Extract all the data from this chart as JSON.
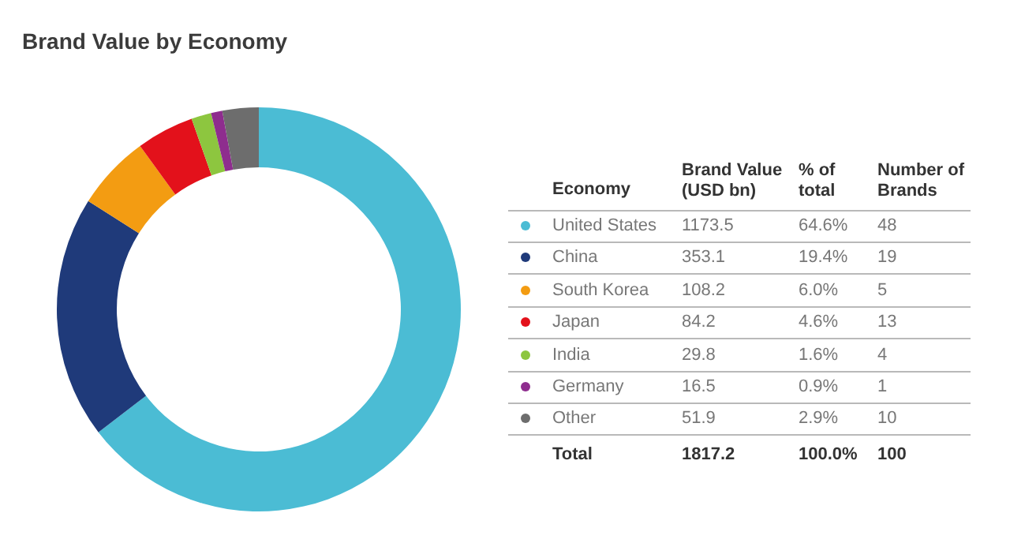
{
  "chart_data": [
    {
      "type": "donut",
      "title": "Brand Value by Economy",
      "categories": [
        null,
        null,
        null,
        null,
        null,
        null,
        null
      ],
      "values": [
        64.6,
        19.4,
        6.0,
        4.6,
        1.6,
        0.9,
        2.9
      ],
      "colors": [
        "#4bbcd4",
        "#1f3a7a",
        "#f39c12",
        "#e3111b",
        "#8dc63f",
        "#8e2d8e",
        "#6d6d6d"
      ]
    },
    {
      "type": "other",
      "xlabel": "Economy",
      "categories": [
        "United States",
        "China",
        "South Korea",
        "Japan",
        "India",
        "Germany",
        "Other"
      ],
      "colors": [
        "#4bbcd4",
        "#1f3a7a",
        "#f39c12",
        "#e3111b",
        "#8dc63f",
        "#8e2d8e",
        "#6d6d6d"
      ],
      "data_labels": true,
      "series": [
        {
          "name": "Brand Value (USD bn)",
          "values": [
            1173.5,
            353.1,
            108.2,
            84.2,
            29.8,
            16.5,
            51.9
          ]
        },
        {
          "name": "% of total",
          "values": [
            64.6,
            19.4,
            6.0,
            4.6,
            1.6,
            0.9,
            2.9
          ],
          "value_labels": [
            "64.6%",
            "19.4%",
            "6.0%",
            "4.6%",
            "1.6%",
            "0.9%",
            "2.9%"
          ]
        },
        {
          "name": "Number of Brands",
          "values": [
            48,
            19,
            5,
            13,
            4,
            1,
            10
          ]
        }
      ],
      "annotations": [
        "Total"
      ],
      "totals": [
        "1817.2",
        "100.0%",
        "100"
      ]
    }
  ]
}
